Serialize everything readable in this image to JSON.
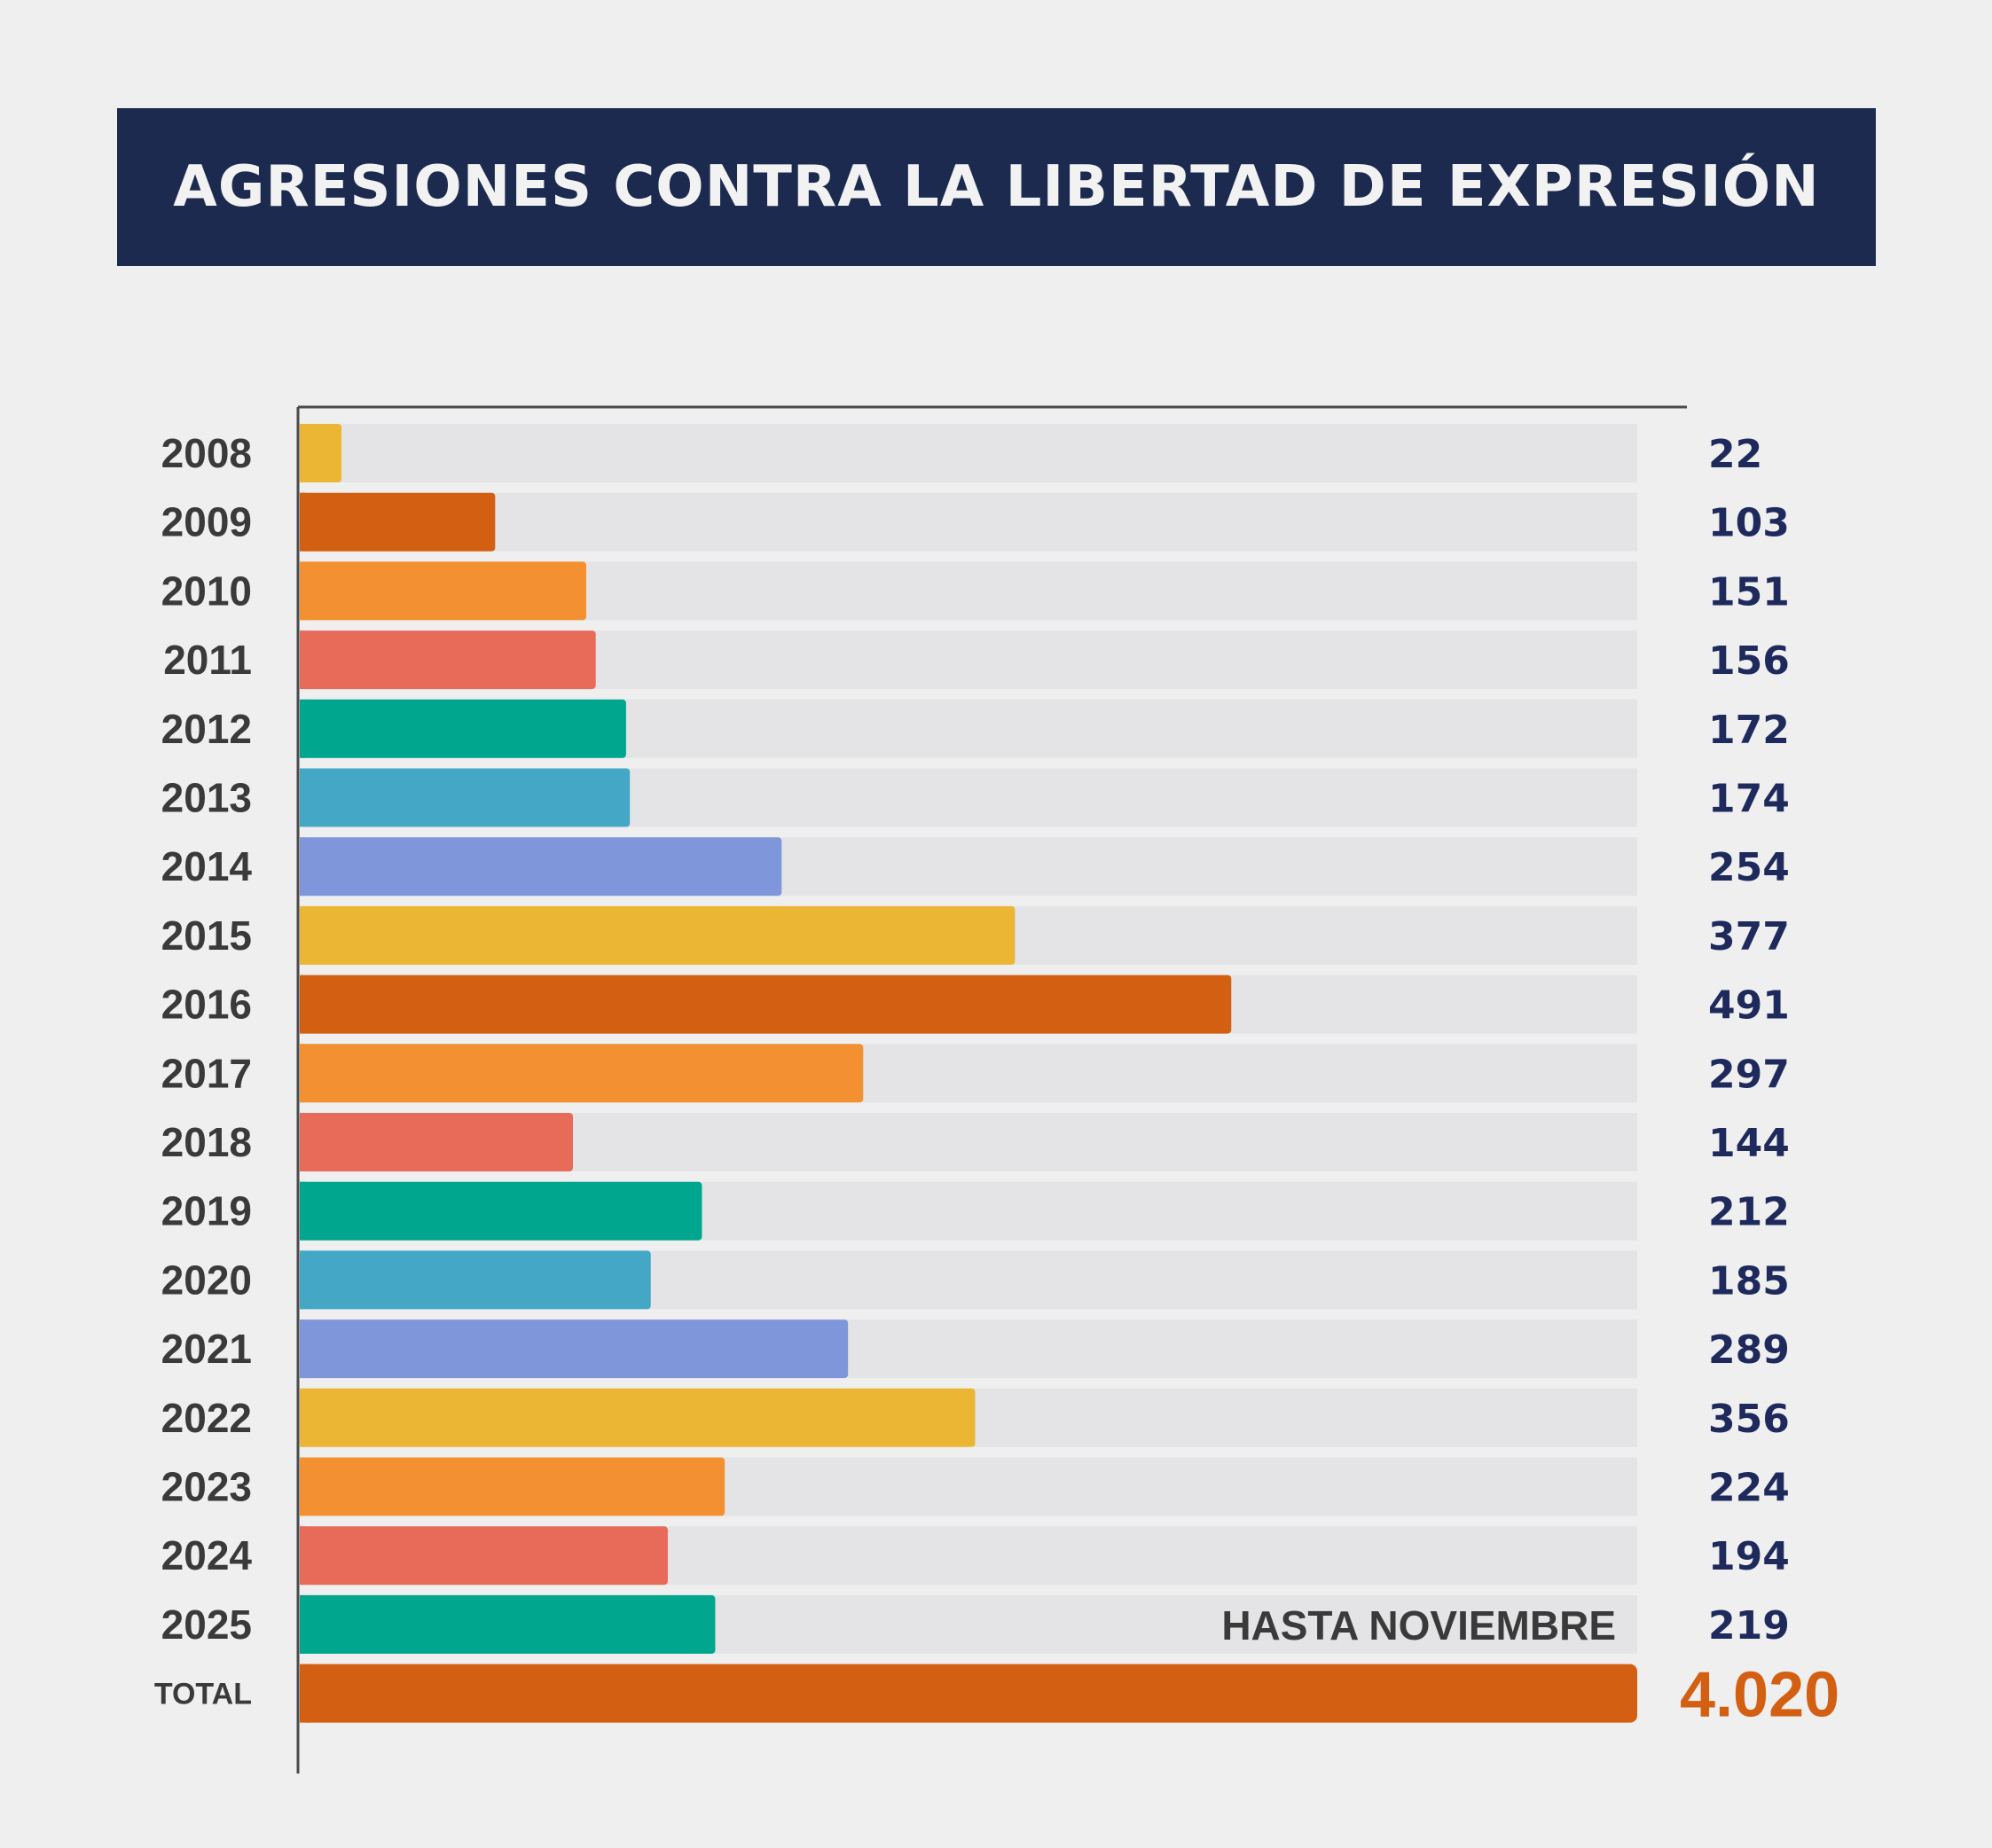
{
  "header": {
    "title": "AGRESIONES CONTRA LA LIBERTAD DE EXPRESIÓN"
  },
  "chart_data": {
    "type": "bar",
    "orientation": "horizontal",
    "title": "AGRESIONES CONTRA LA LIBERTAD DE EXPRESIÓN",
    "xlabel": "",
    "ylabel": "",
    "xlim": [
      0,
      705
    ],
    "grid": false,
    "legend": "none",
    "categories": [
      "2008",
      "2009",
      "2010",
      "2011",
      "2012",
      "2013",
      "2014",
      "2015",
      "2016",
      "2017",
      "2018",
      "2019",
      "2020",
      "2021",
      "2022",
      "2023",
      "2024",
      "2025"
    ],
    "values": [
      22,
      103,
      151,
      156,
      172,
      174,
      254,
      377,
      491,
      297,
      144,
      212,
      185,
      289,
      356,
      224,
      194,
      219
    ],
    "value_labels": [
      "22",
      "103",
      "151",
      "156",
      "172",
      "174",
      "254",
      "377",
      "491",
      "297",
      "144",
      "212",
      "185",
      "289",
      "356",
      "224",
      "194",
      "219"
    ],
    "colors": [
      "#ecb635",
      "#d35f12",
      "#f39032",
      "#e86b5a",
      "#00a68d",
      "#44a7c6",
      "#7f97da",
      "#ecb635",
      "#d35f12",
      "#f39032",
      "#e86b5a",
      "#00a68d",
      "#44a7c6",
      "#7f97da",
      "#ecb635",
      "#f39032",
      "#e86b5a",
      "#00a68d"
    ],
    "annotations": [
      {
        "category": "2025",
        "text": "HASTA NOVIEMBRE"
      }
    ],
    "total": {
      "label": "TOTAL",
      "value": 4020,
      "value_label": "4.020",
      "color": "#d35f12",
      "fill_fraction": 1.0
    },
    "track_color": "#e4e4e6",
    "value_color": "#1f2a5c"
  }
}
